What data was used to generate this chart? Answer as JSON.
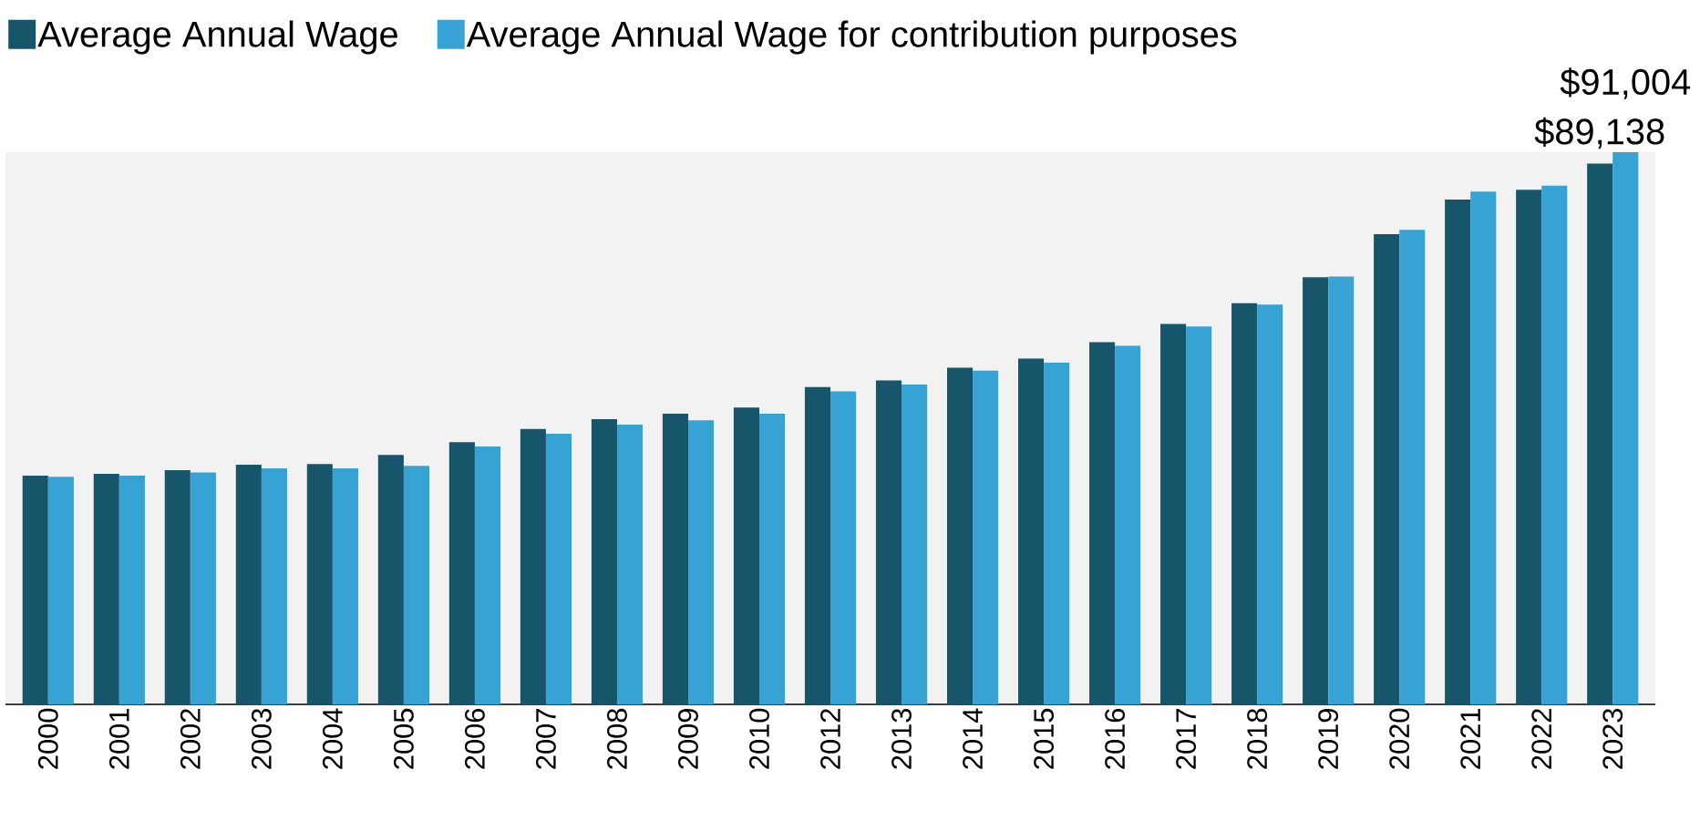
{
  "chart_data": {
    "type": "bar",
    "categories": [
      "2000",
      "2001",
      "2002",
      "2003",
      "2004",
      "2005",
      "2006",
      "2007",
      "2008",
      "2009",
      "2010",
      "2012",
      "2013",
      "2014",
      "2015",
      "2016",
      "2017",
      "2018",
      "2019",
      "2020",
      "2021",
      "2022",
      "2023"
    ],
    "series": [
      {
        "name": "Average Annual Wage",
        "color": "#17566a",
        "values": [
          37700,
          38000,
          38600,
          39500,
          39600,
          41100,
          43200,
          45400,
          47000,
          47900,
          48900,
          52300,
          53400,
          55500,
          57000,
          59700,
          62700,
          66100,
          70400,
          77500,
          83200,
          84800,
          89138
        ],
        "value_labels": [
          null,
          null,
          null,
          null,
          null,
          null,
          null,
          null,
          null,
          null,
          null,
          null,
          null,
          null,
          null,
          null,
          null,
          null,
          null,
          null,
          null,
          null,
          "$89,138"
        ]
      },
      {
        "name": "Average Annual Wage for contribution purposes",
        "color": "#36a3d4",
        "values": [
          37500,
          37700,
          38200,
          38900,
          38900,
          39300,
          42500,
          44600,
          46100,
          46800,
          47900,
          51600,
          52700,
          55000,
          56300,
          59100,
          62300,
          65900,
          70500,
          78200,
          84500,
          85500,
          91004
        ],
        "value_labels": [
          null,
          null,
          null,
          null,
          null,
          null,
          null,
          null,
          null,
          null,
          null,
          null,
          null,
          null,
          null,
          null,
          null,
          null,
          null,
          null,
          null,
          null,
          "$91,004"
        ]
      }
    ],
    "legend": "top"
  }
}
